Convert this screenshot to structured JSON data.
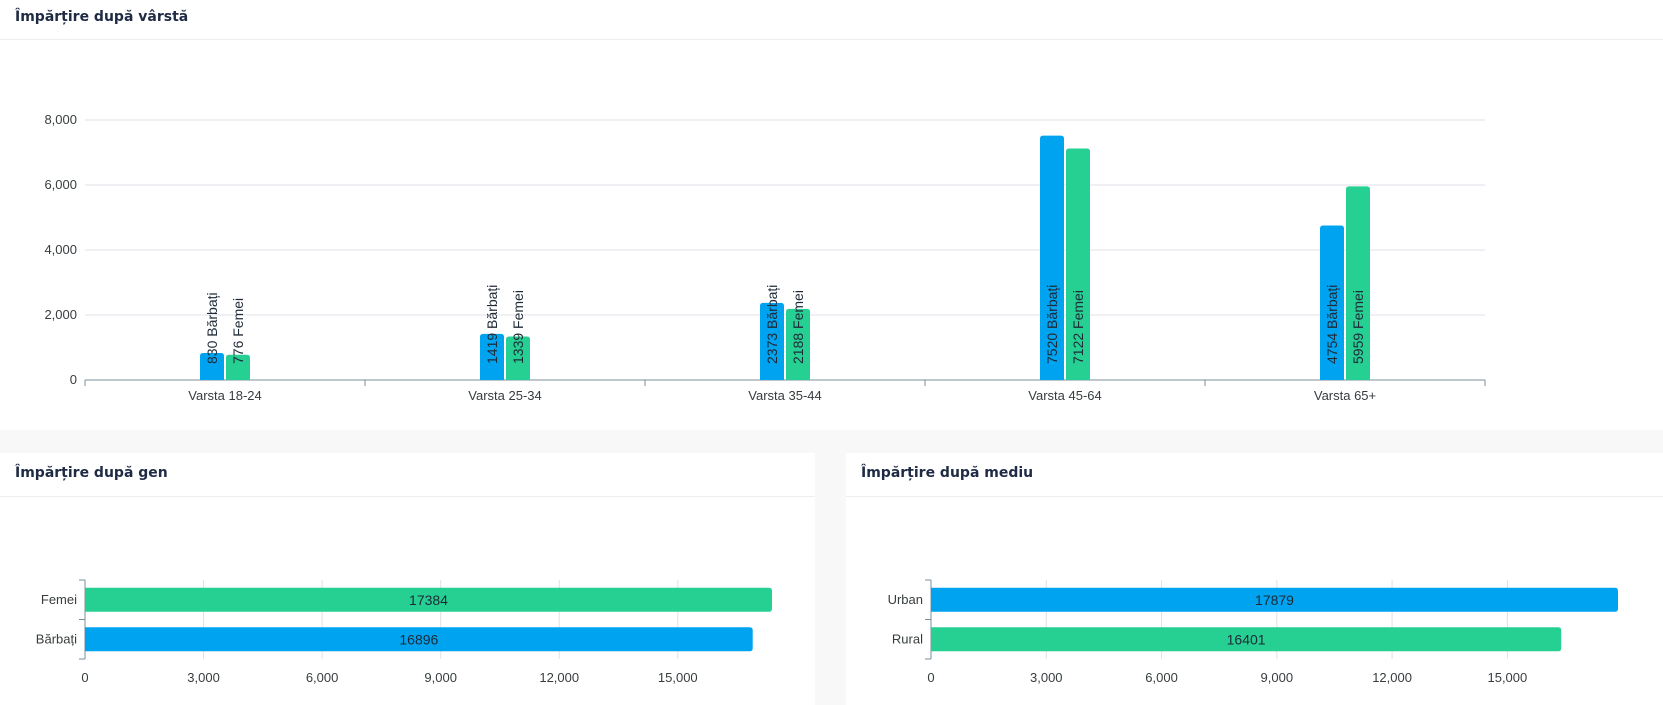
{
  "colors": {
    "barbati": "#00a3f0",
    "femei": "#26cf92",
    "grid": "#e0e0e8",
    "axis": "#78909c"
  },
  "age_card": {
    "title": "Împărțire după vârstă"
  },
  "gender_card": {
    "title": "Împărțire după gen"
  },
  "env_card": {
    "title": "Împărțire după mediu"
  },
  "chart_data": [
    {
      "type": "bar",
      "orientation": "vertical",
      "categories": [
        "Varsta 18-24",
        "Varsta 25-34",
        "Varsta 35-44",
        "Varsta 45-64",
        "Varsta 65+"
      ],
      "series": [
        {
          "name": "Bărbați",
          "values": [
            830,
            1419,
            2373,
            7520,
            4754
          ],
          "color": "#00a3f0"
        },
        {
          "name": "Femei",
          "values": [
            776,
            1339,
            2188,
            7122,
            5959
          ],
          "color": "#26cf92"
        }
      ],
      "ylim": [
        0,
        8000
      ],
      "yticks": [
        0,
        2000,
        4000,
        6000,
        8000
      ],
      "ytick_labels": [
        "0",
        "2,000",
        "4,000",
        "6,000",
        "8,000"
      ],
      "grid": true
    },
    {
      "type": "bar",
      "orientation": "horizontal",
      "categories": [
        "Femei",
        "Bărbați"
      ],
      "values": [
        17384,
        16896
      ],
      "colors": [
        "#26cf92",
        "#00a3f0"
      ],
      "xlim": [
        0,
        17384
      ],
      "xticks": [
        0,
        3000,
        6000,
        9000,
        12000,
        15000
      ],
      "xtick_labels": [
        "0",
        "3,000",
        "6,000",
        "9,000",
        "12,000",
        "15,000"
      ],
      "grid": true
    },
    {
      "type": "bar",
      "orientation": "horizontal",
      "categories": [
        "Urban",
        "Rural"
      ],
      "values": [
        17879,
        16401
      ],
      "colors": [
        "#00a3f0",
        "#26cf92"
      ],
      "xlim": [
        0,
        17879
      ],
      "xticks": [
        0,
        3000,
        6000,
        9000,
        12000,
        15000
      ],
      "xtick_labels": [
        "0",
        "3,000",
        "6,000",
        "9,000",
        "12,000",
        "15,000"
      ],
      "grid": true
    }
  ]
}
